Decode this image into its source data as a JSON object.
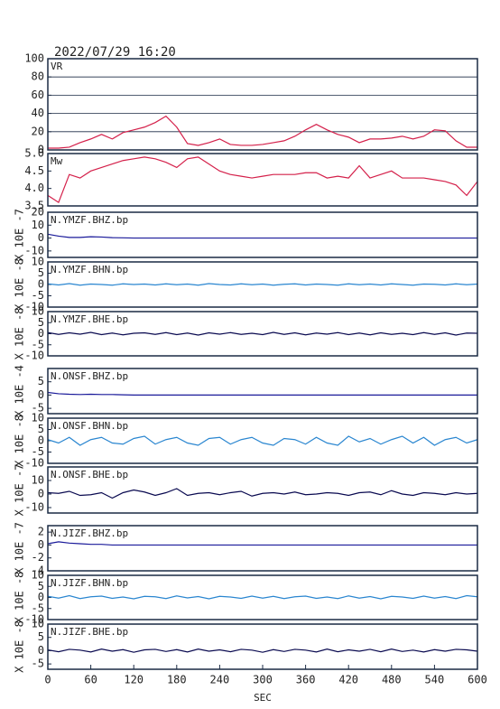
{
  "chart_data": [
    {
      "type": "line",
      "title": "2022/07/29 16:20",
      "label": "VR",
      "color": "#d4204a",
      "grid": true,
      "xlim": [
        0,
        600
      ],
      "ylim": [
        0,
        100
      ],
      "yticks": [
        0,
        20,
        40,
        60,
        80,
        100
      ],
      "x": [
        0,
        15,
        30,
        45,
        60,
        75,
        90,
        105,
        120,
        135,
        150,
        165,
        180,
        195,
        210,
        225,
        240,
        255,
        270,
        285,
        300,
        315,
        330,
        345,
        360,
        375,
        390,
        405,
        420,
        435,
        450,
        465,
        480,
        495,
        510,
        525,
        540,
        555,
        570,
        585,
        600
      ],
      "values": [
        2,
        2,
        3,
        8,
        12,
        17,
        12,
        19,
        22,
        25,
        30,
        37,
        25,
        7,
        5,
        8,
        12,
        6,
        5,
        5,
        6,
        8,
        10,
        15,
        22,
        28,
        22,
        17,
        14,
        8,
        12,
        12,
        13,
        15,
        12,
        15,
        22,
        21,
        10,
        3,
        3
      ]
    },
    {
      "type": "line",
      "label": "Mw",
      "color": "#d4204a",
      "xlim": [
        0,
        600
      ],
      "ylim": [
        3.5,
        5
      ],
      "yticks": [
        3.5,
        {
          "value": 4,
          "label": "4.0"
        },
        4.5,
        {
          "value": 5,
          "label": "5.0"
        }
      ],
      "x": [
        0,
        15,
        30,
        45,
        60,
        75,
        90,
        105,
        120,
        135,
        150,
        165,
        180,
        195,
        210,
        225,
        240,
        255,
        270,
        285,
        300,
        315,
        330,
        345,
        360,
        375,
        390,
        405,
        420,
        435,
        450,
        465,
        480,
        495,
        510,
        525,
        540,
        555,
        570,
        585,
        600
      ],
      "values": [
        3.8,
        3.6,
        4.4,
        4.3,
        4.5,
        4.6,
        4.7,
        4.8,
        4.85,
        4.9,
        4.85,
        4.75,
        4.6,
        4.85,
        4.9,
        4.7,
        4.5,
        4.4,
        4.35,
        4.3,
        4.35,
        4.4,
        4.4,
        4.4,
        4.45,
        4.45,
        4.3,
        4.35,
        4.3,
        4.65,
        4.3,
        4.4,
        4.5,
        4.3,
        4.3,
        4.3,
        4.25,
        4.2,
        4.1,
        3.8,
        4.2
      ]
    },
    {
      "type": "line",
      "label": "N.YMZF.BHZ.bp",
      "y_label": "X 10E -7",
      "color": "#1a1a9a",
      "xlim": [
        0,
        600
      ],
      "ylim": [
        -15,
        20
      ],
      "yticks": [
        20,
        10,
        0,
        -10
      ],
      "x": [
        0,
        15,
        30,
        45,
        60,
        75,
        90,
        105,
        120,
        135,
        150,
        165,
        180,
        195,
        210,
        225,
        240,
        255,
        270,
        285,
        300,
        315,
        330,
        345,
        360,
        375,
        390,
        405,
        420,
        435,
        450,
        465,
        480,
        495,
        510,
        525,
        540,
        555,
        570,
        585,
        600
      ],
      "values": [
        3,
        1.5,
        0.5,
        0.5,
        1,
        0.8,
        0.3,
        0.2,
        0,
        0,
        0,
        0,
        0,
        0,
        0,
        0,
        0,
        0,
        0,
        0,
        0,
        0,
        0,
        0,
        0,
        0,
        0,
        0,
        0,
        0,
        0,
        0,
        0,
        0,
        0,
        0,
        0,
        0,
        0,
        0,
        0
      ]
    },
    {
      "type": "line",
      "label": "N.YMZF.BHN.bp",
      "y_label": "X 10E -8",
      "color": "#2a86d0",
      "xlim": [
        0,
        600
      ],
      "ylim": [
        -10,
        10
      ],
      "yticks": [
        10,
        5,
        0,
        -5,
        -10
      ],
      "x": [
        0,
        15,
        30,
        45,
        60,
        75,
        90,
        105,
        120,
        135,
        150,
        165,
        180,
        195,
        210,
        225,
        240,
        255,
        270,
        285,
        300,
        315,
        330,
        345,
        360,
        375,
        390,
        405,
        420,
        435,
        450,
        465,
        480,
        495,
        510,
        525,
        540,
        555,
        570,
        585,
        600
      ],
      "values": [
        0.3,
        -0.2,
        0.4,
        -0.3,
        0.2,
        0,
        -0.3,
        0.3,
        0,
        0.2,
        -0.2,
        0.3,
        -0.1,
        0.2,
        -0.3,
        0.4,
        0,
        -0.2,
        0.3,
        -0.1,
        0.2,
        -0.3,
        0.1,
        0.3,
        -0.2,
        0.2,
        0,
        -0.3,
        0.3,
        -0.1,
        0.2,
        -0.2,
        0.3,
        0,
        -0.3,
        0.2,
        0.1,
        -0.2,
        0.3,
        -0.1,
        0.2
      ]
    },
    {
      "type": "line",
      "label": "N.YMZF.BHE.bp",
      "y_label": "X 10E -8",
      "color": "#0a0a50",
      "xlim": [
        0,
        600
      ],
      "ylim": [
        -10,
        10
      ],
      "yticks": [
        10,
        5,
        0,
        -5,
        -10
      ],
      "x": [
        0,
        15,
        30,
        45,
        60,
        75,
        90,
        105,
        120,
        135,
        150,
        165,
        180,
        195,
        210,
        225,
        240,
        255,
        270,
        285,
        300,
        315,
        330,
        345,
        360,
        375,
        390,
        405,
        420,
        435,
        450,
        465,
        480,
        495,
        510,
        525,
        540,
        555,
        570,
        585,
        600
      ],
      "values": [
        0.5,
        -0.3,
        0.4,
        -0.2,
        0.6,
        -0.4,
        0.3,
        -0.5,
        0.2,
        0.4,
        -0.3,
        0.5,
        -0.4,
        0.3,
        -0.6,
        0.4,
        -0.2,
        0.5,
        -0.3,
        0.2,
        -0.4,
        0.6,
        -0.3,
        0.4,
        -0.5,
        0.3,
        -0.2,
        0.5,
        -0.4,
        0.3,
        -0.5,
        0.4,
        -0.3,
        0.2,
        -0.4,
        0.5,
        -0.3,
        0.4,
        -0.6,
        0.3,
        0.2
      ]
    },
    {
      "type": "line",
      "label": "N.ONSF.BHZ.bp",
      "y_label": "X 10E -4",
      "color": "#1a1a9a",
      "xlim": [
        0,
        600
      ],
      "ylim": [
        -7,
        10
      ],
      "yticks": [
        5,
        0,
        -5
      ],
      "x": [
        0,
        15,
        30,
        45,
        60,
        75,
        90,
        105,
        120,
        135,
        150,
        165,
        180,
        195,
        210,
        225,
        240,
        255,
        270,
        285,
        300,
        315,
        330,
        345,
        360,
        375,
        390,
        405,
        420,
        435,
        450,
        465,
        480,
        495,
        510,
        525,
        540,
        555,
        570,
        585,
        600
      ],
      "values": [
        1,
        0.5,
        0.3,
        0.2,
        0.3,
        0.2,
        0.2,
        0.1,
        0,
        0,
        0,
        0,
        0,
        0,
        0,
        0,
        0,
        0,
        0,
        0,
        0,
        0,
        0,
        0,
        0,
        0,
        0,
        0,
        0,
        0,
        0,
        0,
        0,
        0,
        0,
        0,
        0,
        0,
        0,
        0,
        0
      ]
    },
    {
      "type": "line",
      "label": "N.ONSF.BHN.bp",
      "y_label": "X 10E -8",
      "color": "#2a86d0",
      "xlim": [
        0,
        600
      ],
      "ylim": [
        -10,
        10
      ],
      "yticks": [
        10,
        5,
        0,
        -5,
        -10
      ],
      "x": [
        0,
        15,
        30,
        45,
        60,
        75,
        90,
        105,
        120,
        135,
        150,
        165,
        180,
        195,
        210,
        225,
        240,
        255,
        270,
        285,
        300,
        315,
        330,
        345,
        360,
        375,
        390,
        405,
        420,
        435,
        450,
        465,
        480,
        495,
        510,
        525,
        540,
        555,
        570,
        585,
        600
      ],
      "values": [
        0.5,
        -1,
        1.5,
        -2,
        0.5,
        1.5,
        -1,
        -1.5,
        1,
        2,
        -1.5,
        0.5,
        1.5,
        -1,
        -2,
        1,
        1.5,
        -1.5,
        0.5,
        1.5,
        -1,
        -2,
        1,
        0.5,
        -1.5,
        1.5,
        -1,
        -2,
        2,
        -0.5,
        1,
        -1.5,
        0.5,
        2,
        -1,
        1.5,
        -2,
        0.5,
        1.5,
        -1,
        0.5
      ]
    },
    {
      "type": "line",
      "label": "N.ONSF.BHE.bp",
      "y_label": "X 10E -7",
      "color": "#0a0a50",
      "xlim": [
        0,
        600
      ],
      "ylim": [
        -14,
        20
      ],
      "yticks": [
        10,
        0,
        -10
      ],
      "x": [
        0,
        15,
        30,
        45,
        60,
        75,
        90,
        105,
        120,
        135,
        150,
        165,
        180,
        195,
        210,
        225,
        240,
        255,
        270,
        285,
        300,
        315,
        330,
        345,
        360,
        375,
        390,
        405,
        420,
        435,
        450,
        465,
        480,
        495,
        510,
        525,
        540,
        555,
        570,
        585,
        600
      ],
      "values": [
        1,
        0.5,
        2,
        -1,
        -0.5,
        1,
        -3,
        1,
        3,
        1.5,
        -1,
        1,
        4,
        -1,
        0.5,
        1,
        -0.5,
        1,
        2,
        -1.5,
        0.5,
        1,
        0,
        1.5,
        -0.5,
        0,
        1,
        0.5,
        -1,
        1,
        1.5,
        -0.5,
        2.5,
        0,
        -1,
        1,
        0.5,
        -0.5,
        1,
        0,
        0.5
      ]
    },
    {
      "type": "line",
      "label": "N.JIZF.BHZ.bp",
      "y_label": "X 10E -7",
      "color": "#1a1a9a",
      "xlim": [
        0,
        600
      ],
      "ylim": [
        -4,
        3
      ],
      "yticks": [
        2,
        0,
        -2,
        -4
      ],
      "x": [
        0,
        15,
        30,
        45,
        60,
        75,
        90,
        105,
        120,
        135,
        150,
        165,
        180,
        195,
        210,
        225,
        240,
        255,
        270,
        285,
        300,
        315,
        330,
        345,
        360,
        375,
        390,
        405,
        420,
        435,
        450,
        465,
        480,
        495,
        510,
        525,
        540,
        555,
        570,
        585,
        600
      ],
      "values": [
        0.2,
        0.5,
        0.3,
        0.2,
        0.1,
        0.1,
        0,
        0,
        0,
        0,
        0,
        0,
        0,
        0,
        0,
        0,
        0,
        0,
        0,
        0,
        0,
        0,
        0,
        0,
        0,
        0,
        0,
        0,
        0,
        0,
        0,
        0,
        0,
        0,
        0,
        0,
        0,
        0,
        0,
        0,
        0
      ]
    },
    {
      "type": "line",
      "label": "N.JIZF.BHN.bp",
      "y_label": "X 10E -8",
      "color": "#2a86d0",
      "xlim": [
        0,
        600
      ],
      "ylim": [
        -10,
        10
      ],
      "yticks": [
        10,
        5,
        0,
        -5,
        -10
      ],
      "x": [
        0,
        15,
        30,
        45,
        60,
        75,
        90,
        105,
        120,
        135,
        150,
        165,
        180,
        195,
        210,
        225,
        240,
        255,
        270,
        285,
        300,
        315,
        330,
        345,
        360,
        375,
        390,
        405,
        420,
        435,
        450,
        465,
        480,
        495,
        510,
        525,
        540,
        555,
        570,
        585,
        600
      ],
      "values": [
        0.5,
        -0.3,
        0.8,
        -0.5,
        0.3,
        0.6,
        -0.4,
        0.2,
        -0.6,
        0.5,
        0.3,
        -0.5,
        0.7,
        -0.2,
        0.4,
        -0.6,
        0.5,
        0.2,
        -0.4,
        0.6,
        -0.3,
        0.5,
        -0.5,
        0.3,
        0.6,
        -0.4,
        0.2,
        -0.5,
        0.7,
        -0.3,
        0.4,
        -0.6,
        0.5,
        0.2,
        -0.4,
        0.6,
        -0.3,
        0.4,
        -0.5,
        0.8,
        0.3
      ]
    },
    {
      "type": "line",
      "label": "N.JIZF.BHE.bp",
      "y_label": "X 10E -8",
      "color": "#0a0a50",
      "x_label": "SEC",
      "xlim": [
        0,
        600
      ],
      "xticks": [
        0,
        60,
        120,
        180,
        240,
        300,
        360,
        420,
        480,
        540,
        600
      ],
      "ylim": [
        -7,
        10
      ],
      "yticks": [
        10,
        5,
        0,
        -5
      ],
      "x": [
        0,
        15,
        30,
        45,
        60,
        75,
        90,
        105,
        120,
        135,
        150,
        165,
        180,
        195,
        210,
        225,
        240,
        255,
        270,
        285,
        300,
        315,
        330,
        345,
        360,
        375,
        390,
        405,
        420,
        435,
        450,
        465,
        480,
        495,
        510,
        525,
        540,
        555,
        570,
        585,
        600
      ],
      "values": [
        0.3,
        -0.4,
        0.5,
        0.2,
        -0.5,
        0.6,
        -0.2,
        0.4,
        -0.6,
        0.3,
        0.5,
        -0.3,
        0.4,
        -0.5,
        0.6,
        -0.2,
        0.3,
        -0.4,
        0.5,
        0.2,
        -0.6,
        0.4,
        -0.3,
        0.5,
        0.2,
        -0.5,
        0.6,
        -0.4,
        0.3,
        -0.2,
        0.5,
        -0.4,
        0.6,
        -0.3,
        0.2,
        -0.5,
        0.4,
        -0.2,
        0.5,
        0.3,
        -0.2
      ]
    }
  ]
}
